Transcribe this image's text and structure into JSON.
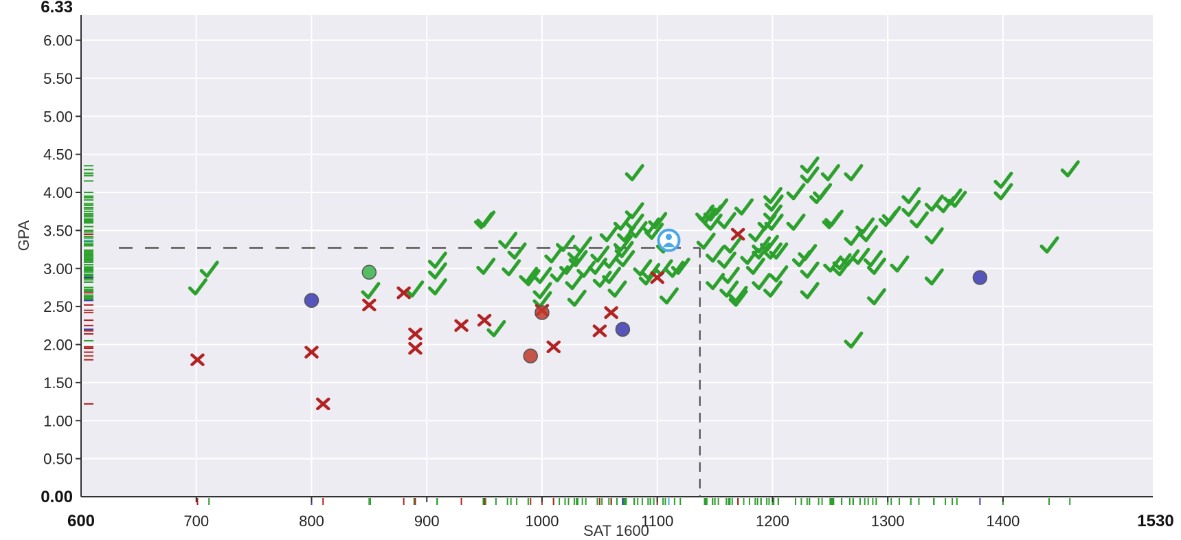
{
  "chart_data": {
    "type": "scatter",
    "xlabel": "SAT 1600",
    "ylabel": "GPA",
    "xlim": [
      600,
      1530
    ],
    "ylim": [
      0,
      6.33
    ],
    "x_ticks": [
      "700",
      "800",
      "900",
      "1000",
      "1100",
      "1200",
      "1300",
      "1400"
    ],
    "x_tick_values": [
      700,
      800,
      900,
      1000,
      1100,
      1200,
      1300,
      1400
    ],
    "x_end_labels": {
      "min": "600",
      "max": "1530"
    },
    "y_ticks": [
      "0.50",
      "1.00",
      "1.50",
      "2.00",
      "2.50",
      "3.00",
      "3.50",
      "4.00",
      "4.50",
      "5.00",
      "5.50",
      "6.00"
    ],
    "y_tick_values": [
      0.5,
      1,
      1.5,
      2,
      2.5,
      3,
      3.5,
      4,
      4.5,
      5,
      5.5,
      6
    ],
    "y_end_labels": {
      "min": "0.00",
      "max": "6.33"
    },
    "grid": true,
    "reference_point": {
      "x": 1137,
      "y": 3.27
    },
    "colors": {
      "accepted": "#2ca02c",
      "rejected": "#b22222",
      "waitlist_accepted": "#3cb44b",
      "waitlist_rejected": "#c0392b",
      "other": "#3b3bb3",
      "you": "#4aa8e8",
      "plot_bg": "#ececf2",
      "grid": "#ffffff"
    },
    "series": [
      {
        "type": "accepted",
        "marker": "check",
        "points": [
          [
            701,
            2.75
          ],
          [
            711,
            2.98
          ],
          [
            851,
            2.7
          ],
          [
            889,
            2.72
          ],
          [
            909,
            3.1
          ],
          [
            909,
            2.96
          ],
          [
            909,
            2.75
          ],
          [
            949,
            3.62
          ],
          [
            951,
            3.64
          ],
          [
            951,
            3.02
          ],
          [
            960,
            2.2
          ],
          [
            970,
            3.36
          ],
          [
            973,
            3.0
          ],
          [
            978,
            3.22
          ],
          [
            988,
            2.9
          ],
          [
            990,
            2.87
          ],
          [
            1000,
            2.7
          ],
          [
            1000,
            2.9
          ],
          [
            1000,
            2.58
          ],
          [
            1010,
            3.17
          ],
          [
            1015,
            2.92
          ],
          [
            1020,
            3.32
          ],
          [
            1023,
            3.02
          ],
          [
            1028,
            2.82
          ],
          [
            1030,
            3.2
          ],
          [
            1030,
            2.6
          ],
          [
            1031,
            3.12
          ],
          [
            1035,
            3.3
          ],
          [
            1038,
            2.98
          ],
          [
            1048,
            3.02
          ],
          [
            1050,
            3.18
          ],
          [
            1052,
            2.85
          ],
          [
            1058,
            3.45
          ],
          [
            1060,
            2.9
          ],
          [
            1060,
            3.1
          ],
          [
            1065,
            2.72
          ],
          [
            1070,
            3.32
          ],
          [
            1070,
            3.6
          ],
          [
            1071,
            3.24
          ],
          [
            1072,
            3.12
          ],
          [
            1073,
            3.45
          ],
          [
            1080,
            3.6
          ],
          [
            1080,
            3.75
          ],
          [
            1080,
            4.25
          ],
          [
            1083,
            3.5
          ],
          [
            1087,
            3.0
          ],
          [
            1092,
            2.88
          ],
          [
            1094,
            2.95
          ],
          [
            1094,
            3.55
          ],
          [
            1097,
            3.48
          ],
          [
            1100,
            3.62
          ],
          [
            1105,
            3.0
          ],
          [
            1107,
            3.3
          ],
          [
            1110,
            2.63
          ],
          [
            1115,
            2.98
          ],
          [
            1120,
            3.02
          ],
          [
            1141,
            3.72
          ],
          [
            1143,
            3.68
          ],
          [
            1142,
            3.35
          ],
          [
            1148,
            3.6
          ],
          [
            1148,
            3.72
          ],
          [
            1150,
            3.18
          ],
          [
            1150,
            2.82
          ],
          [
            1153,
            3.8
          ],
          [
            1160,
            3.62
          ],
          [
            1160,
            3.1
          ],
          [
            1162,
            2.72
          ],
          [
            1163,
            2.9
          ],
          [
            1165,
            3.3
          ],
          [
            1170,
            2.6
          ],
          [
            1170,
            2.65
          ],
          [
            1175,
            3.8
          ],
          [
            1180,
            3.15
          ],
          [
            1185,
            3.02
          ],
          [
            1187,
            3.45
          ],
          [
            1190,
            3.3
          ],
          [
            1190,
            3.22
          ],
          [
            1190,
            2.82
          ],
          [
            1195,
            3.6
          ],
          [
            1197,
            3.32
          ],
          [
            1200,
            3.95
          ],
          [
            1200,
            2.72
          ],
          [
            1200,
            3.72
          ],
          [
            1200,
            3.22
          ],
          [
            1201,
            3.85
          ],
          [
            1201,
            3.6
          ],
          [
            1205,
            2.92
          ],
          [
            1205,
            3.22
          ],
          [
            1220,
            3.6
          ],
          [
            1220,
            4.0
          ],
          [
            1225,
            3.12
          ],
          [
            1230,
            3.2
          ],
          [
            1232,
            4.35
          ],
          [
            1232,
            4.22
          ],
          [
            1232,
            2.7
          ],
          [
            1232,
            2.97
          ],
          [
            1240,
            3.95
          ],
          [
            1243,
            4.0
          ],
          [
            1250,
            4.25
          ],
          [
            1251,
            3.62
          ],
          [
            1252,
            3.05
          ],
          [
            1253,
            3.65
          ],
          [
            1260,
            3.0
          ],
          [
            1260,
            3.08
          ],
          [
            1267,
            3.13
          ],
          [
            1270,
            3.4
          ],
          [
            1270,
            4.25
          ],
          [
            1270,
            2.05
          ],
          [
            1276,
            3.15
          ],
          [
            1280,
            3.55
          ],
          [
            1283,
            3.45
          ],
          [
            1287,
            3.12
          ],
          [
            1290,
            2.62
          ],
          [
            1290,
            3.02
          ],
          [
            1300,
            3.65
          ],
          [
            1303,
            3.7
          ],
          [
            1310,
            3.05
          ],
          [
            1320,
            3.95
          ],
          [
            1320,
            3.78
          ],
          [
            1327,
            3.63
          ],
          [
            1340,
            3.42
          ],
          [
            1340,
            3.85
          ],
          [
            1340,
            2.88
          ],
          [
            1350,
            3.83
          ],
          [
            1356,
            3.93
          ],
          [
            1360,
            3.9
          ],
          [
            1400,
            4.15
          ],
          [
            1400,
            4.0
          ],
          [
            1440,
            3.3
          ],
          [
            1458,
            4.3
          ]
        ]
      },
      {
        "type": "rejected",
        "marker": "x",
        "points": [
          [
            701,
            1.8
          ],
          [
            800,
            1.9
          ],
          [
            810,
            1.22
          ],
          [
            850,
            2.52
          ],
          [
            880,
            2.68
          ],
          [
            890,
            2.14
          ],
          [
            890,
            1.95
          ],
          [
            930,
            2.25
          ],
          [
            950,
            2.32
          ],
          [
            1000,
            2.45
          ],
          [
            1010,
            1.97
          ],
          [
            1050,
            2.18
          ],
          [
            1060,
            2.42
          ],
          [
            1100,
            2.88
          ],
          [
            1170,
            3.45
          ]
        ]
      },
      {
        "type": "waitlist_accepted",
        "marker": "dot",
        "points": [
          [
            850,
            2.95
          ]
        ]
      },
      {
        "type": "waitlist_rejected",
        "marker": "dot",
        "points": [
          [
            990,
            1.85
          ],
          [
            1000,
            2.42
          ]
        ]
      },
      {
        "type": "other",
        "marker": "dot",
        "points": [
          [
            800,
            2.58
          ],
          [
            1070,
            2.2
          ],
          [
            1380,
            2.88
          ]
        ]
      },
      {
        "type": "you",
        "marker": "you",
        "points": [
          [
            1110,
            3.37
          ]
        ]
      }
    ]
  }
}
